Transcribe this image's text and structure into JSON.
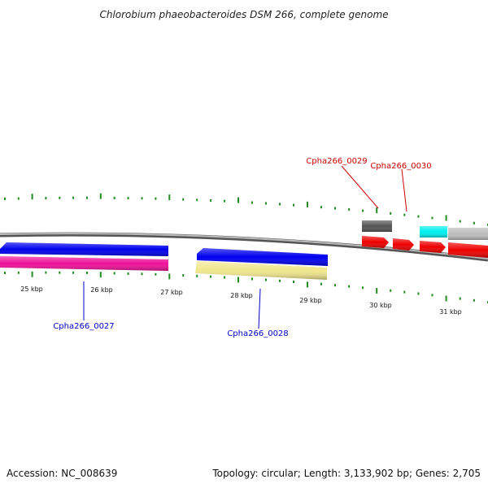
{
  "title": "Chlorobium phaeobacteroides DSM 266, complete genome",
  "footer": {
    "accession": "Accession: NC_008639",
    "summary": "Topology: circular; Length: 3,133,902 bp; Genes: 2,705"
  },
  "ticks": [
    {
      "label": "25 kbp"
    },
    {
      "label": "26 kbp"
    },
    {
      "label": "27 kbp"
    },
    {
      "label": "28 kbp"
    },
    {
      "label": "29 kbp"
    },
    {
      "label": "30 kbp"
    },
    {
      "label": "31 kbp"
    }
  ],
  "gene_labels": [
    {
      "text": "Cpha266_0027",
      "color": "#0000cc"
    },
    {
      "text": "Cpha266_0028",
      "color": "#0000cc"
    },
    {
      "text": "Cpha266_0029",
      "color": "#cc0000"
    },
    {
      "text": "Cpha266_0030",
      "color": "#cc0000"
    }
  ],
  "colors": {
    "backbone": "#888888",
    "tick": "#228b22",
    "cds_blue": "#0000ee",
    "cds_magenta": "#ee1199",
    "cds_khaki": "#f0e68c",
    "cds_red": "#ee0000",
    "cds_cyan": "#00eeee",
    "cds_dark_gray": "#555555",
    "cds_light_gray": "#bbbbbb"
  }
}
